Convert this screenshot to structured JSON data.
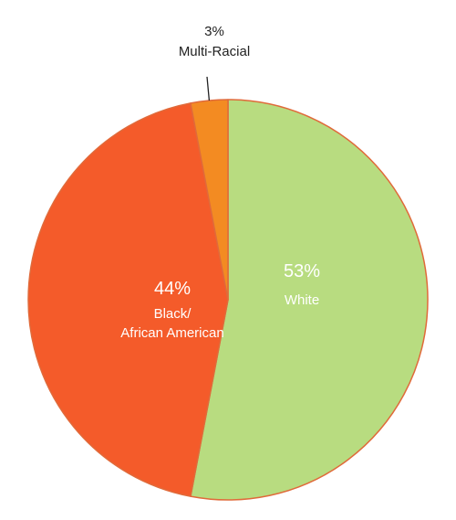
{
  "chart_data": {
    "type": "pie",
    "unit": "%",
    "start_angle": "12 o'clock",
    "direction": "clockwise",
    "legend": "none",
    "slices": [
      {
        "label_lines": [
          "White"
        ],
        "value": 53,
        "value_text": "53%",
        "color": "#b8dc80",
        "stroke": "#e06a3a",
        "label_position": "inside"
      },
      {
        "label_lines": [
          "Black/",
          "African American"
        ],
        "value": 44,
        "value_text": "44%",
        "color": "#f45b2a",
        "stroke": "#e06a3a",
        "label_position": "inside"
      },
      {
        "label_lines": [
          "Multi-Racial"
        ],
        "value": 3,
        "value_text": "3%",
        "color": "#f38b22",
        "stroke": "#e06a3a",
        "label_position": "outside-leader"
      }
    ]
  }
}
